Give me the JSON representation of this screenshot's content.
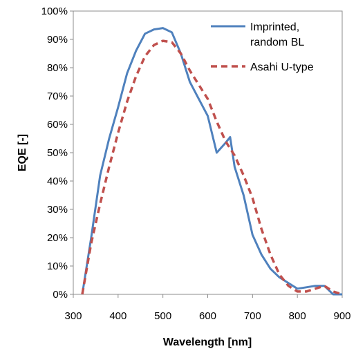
{
  "chart_data": {
    "type": "line",
    "xlabel": "Wavelength [nm]",
    "ylabel": "EQE [-]",
    "xlim": [
      300,
      900
    ],
    "ylim": [
      0,
      100
    ],
    "x_ticks": [
      "300",
      "400",
      "500",
      "600",
      "700",
      "800",
      "900"
    ],
    "y_ticks": [
      "0%",
      "10%",
      "20%",
      "30%",
      "40%",
      "50%",
      "60%",
      "70%",
      "80%",
      "90%",
      "100%"
    ],
    "grid": false,
    "legend_position": "top-right",
    "series": [
      {
        "name_lines": [
          "Imprinted,",
          "random BL"
        ],
        "color": "#4f81bd",
        "style": "solid",
        "x": [
          320,
          340,
          360,
          380,
          400,
          420,
          440,
          460,
          480,
          500,
          520,
          540,
          560,
          580,
          600,
          620,
          640,
          650,
          660,
          680,
          700,
          720,
          740,
          760,
          780,
          800,
          820,
          840,
          860,
          880,
          900
        ],
        "y": [
          0,
          20,
          42,
          55,
          66,
          78,
          86,
          92,
          93.5,
          94,
          92.5,
          85,
          75,
          69,
          63,
          50,
          53.5,
          55.5,
          45,
          35,
          21,
          14,
          9,
          6,
          4,
          2,
          2.5,
          3,
          3,
          0,
          0
        ]
      },
      {
        "name_lines": [
          "Asahi U-type"
        ],
        "color": "#c0504d",
        "style": "dashed",
        "x": [
          320,
          340,
          360,
          380,
          400,
          420,
          440,
          460,
          480,
          500,
          520,
          540,
          560,
          580,
          600,
          620,
          640,
          660,
          680,
          700,
          720,
          740,
          760,
          780,
          800,
          820,
          840,
          860,
          880,
          900
        ],
        "y": [
          0,
          18,
          32,
          45,
          57,
          68,
          77,
          84,
          88,
          89.5,
          89,
          85,
          79,
          74,
          69,
          61,
          54,
          49,
          42,
          34,
          23,
          14,
          7,
          3,
          1,
          1,
          2,
          3,
          1,
          0
        ]
      }
    ]
  }
}
